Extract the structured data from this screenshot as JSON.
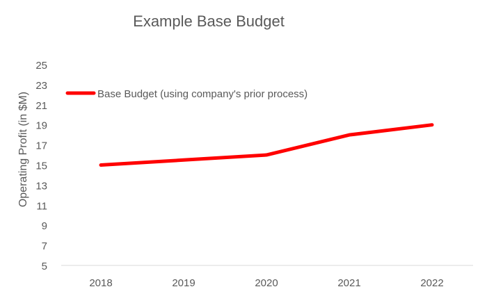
{
  "chart_data": {
    "type": "line",
    "title": "Example Base Budget",
    "xlabel": "",
    "ylabel": "Operating Profit (in $M)",
    "categories": [
      "2018",
      "2019",
      "2020",
      "2021",
      "2022"
    ],
    "series": [
      {
        "name": "Base Budget (using company's prior process)",
        "values": [
          15,
          15.5,
          16,
          18,
          19
        ],
        "color": "#ff0000"
      }
    ],
    "yticks": [
      5,
      7,
      9,
      11,
      13,
      15,
      17,
      19,
      21,
      23,
      25
    ],
    "ylim": [
      5,
      25
    ],
    "grid": false,
    "legend": "top-left"
  }
}
